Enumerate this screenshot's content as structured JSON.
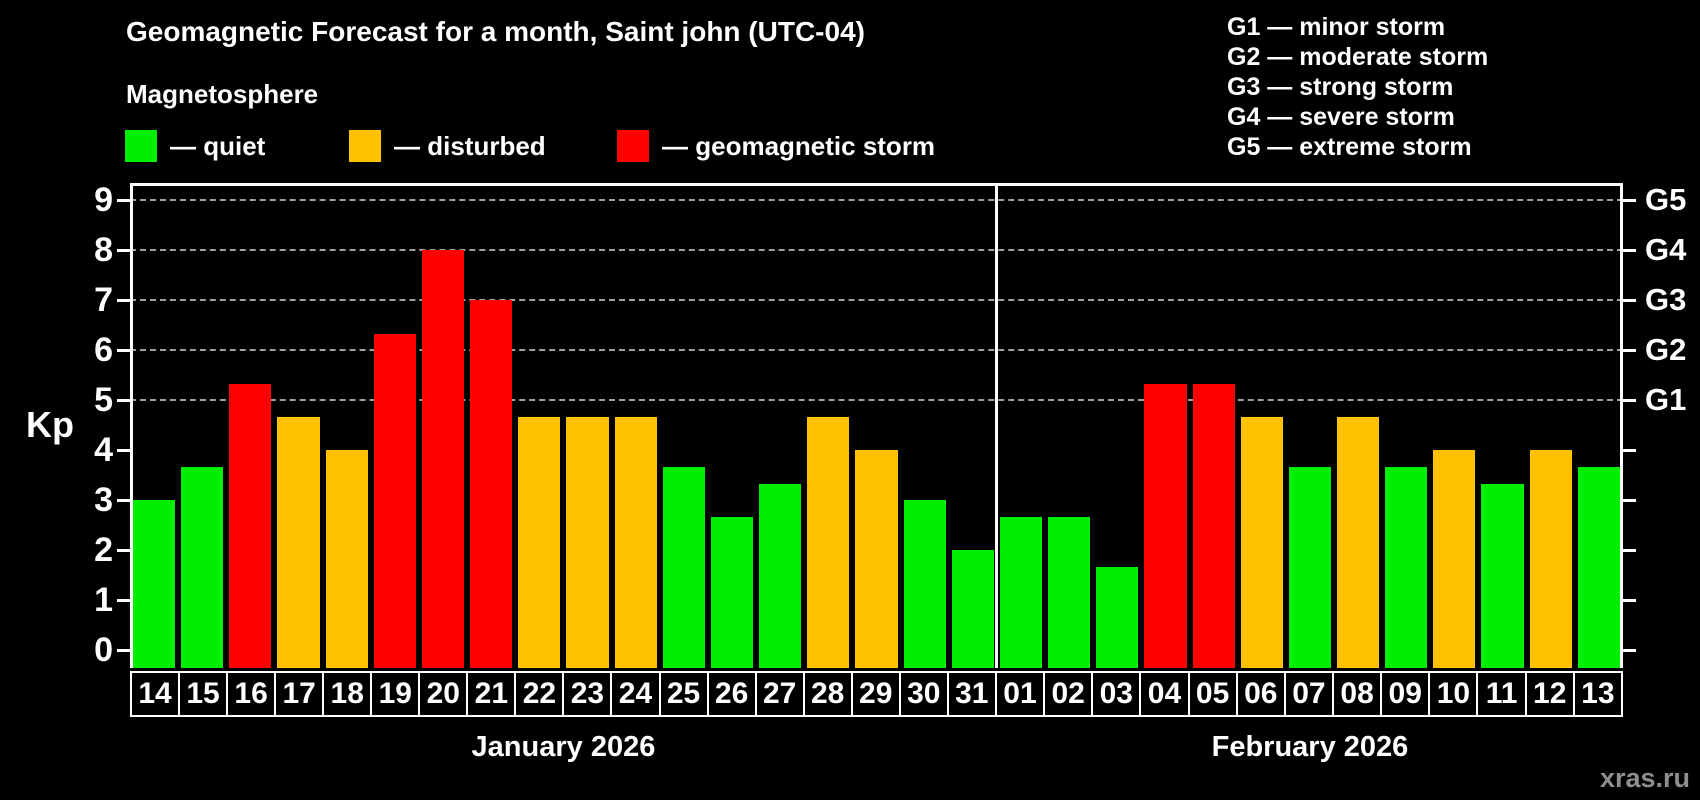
{
  "watermark": "xras.ru",
  "chart_data": {
    "type": "bar",
    "title": "Geomagnetic Forecast for a month, Saint john (UTC-04)",
    "subtitle": "Magnetosphere",
    "ylabel": "Kp",
    "ylim": [
      0,
      9
    ],
    "y_ticks": [
      0,
      1,
      2,
      3,
      4,
      5,
      6,
      7,
      8,
      9
    ],
    "gridlines_at": [
      5,
      6,
      7,
      8,
      9
    ],
    "grid_style": "dashed",
    "legend_position": "top",
    "colors": {
      "quiet": "#00ee00",
      "disturbed": "#ffc100",
      "storm": "#ff0000",
      "grid": "#a0a0a0",
      "axis": "#ffffff",
      "background": "#000000",
      "watermark": "#8e8e8e"
    },
    "legend": [
      {
        "label": "— quiet",
        "level": "quiet"
      },
      {
        "label": "— disturbed",
        "level": "disturbed"
      },
      {
        "label": "— geomagnetic storm",
        "level": "storm"
      }
    ],
    "g_legend": [
      "G1 — minor storm",
      "G2 — moderate storm",
      "G3 — strong storm",
      "G4 — severe storm",
      "G5 — extreme storm"
    ],
    "g_levels": [
      {
        "kp": 5,
        "label": "G1"
      },
      {
        "kp": 6,
        "label": "G2"
      },
      {
        "kp": 7,
        "label": "G3"
      },
      {
        "kp": 8,
        "label": "G4"
      },
      {
        "kp": 9,
        "label": "G5"
      }
    ],
    "months": [
      {
        "label": "January 2026",
        "days": [
          {
            "day": "14",
            "kp": 3.0,
            "level": "quiet"
          },
          {
            "day": "15",
            "kp": 3.67,
            "level": "quiet"
          },
          {
            "day": "16",
            "kp": 5.33,
            "level": "storm"
          },
          {
            "day": "17",
            "kp": 4.67,
            "level": "disturbed"
          },
          {
            "day": "18",
            "kp": 4.0,
            "level": "disturbed"
          },
          {
            "day": "19",
            "kp": 6.33,
            "level": "storm"
          },
          {
            "day": "20",
            "kp": 8.0,
            "level": "storm"
          },
          {
            "day": "21",
            "kp": 7.0,
            "level": "storm"
          },
          {
            "day": "22",
            "kp": 4.67,
            "level": "disturbed"
          },
          {
            "day": "23",
            "kp": 4.67,
            "level": "disturbed"
          },
          {
            "day": "24",
            "kp": 4.67,
            "level": "disturbed"
          },
          {
            "day": "25",
            "kp": 3.67,
            "level": "quiet"
          },
          {
            "day": "26",
            "kp": 2.67,
            "level": "quiet"
          },
          {
            "day": "27",
            "kp": 3.33,
            "level": "quiet"
          },
          {
            "day": "28",
            "kp": 4.67,
            "level": "disturbed"
          },
          {
            "day": "29",
            "kp": 4.0,
            "level": "disturbed"
          },
          {
            "day": "30",
            "kp": 3.0,
            "level": "quiet"
          },
          {
            "day": "31",
            "kp": 2.0,
            "level": "quiet"
          }
        ]
      },
      {
        "label": "February 2026",
        "days": [
          {
            "day": "01",
            "kp": 2.67,
            "level": "quiet"
          },
          {
            "day": "02",
            "kp": 2.67,
            "level": "quiet"
          },
          {
            "day": "03",
            "kp": 1.67,
            "level": "quiet"
          },
          {
            "day": "04",
            "kp": 5.33,
            "level": "storm"
          },
          {
            "day": "05",
            "kp": 5.33,
            "level": "storm"
          },
          {
            "day": "06",
            "kp": 4.67,
            "level": "disturbed"
          },
          {
            "day": "07",
            "kp": 3.67,
            "level": "quiet"
          },
          {
            "day": "08",
            "kp": 4.67,
            "level": "disturbed"
          },
          {
            "day": "09",
            "kp": 3.67,
            "level": "quiet"
          },
          {
            "day": "10",
            "kp": 4.0,
            "level": "disturbed"
          },
          {
            "day": "11",
            "kp": 3.33,
            "level": "quiet"
          },
          {
            "day": "12",
            "kp": 4.0,
            "level": "disturbed"
          },
          {
            "day": "13",
            "kp": 3.67,
            "level": "quiet"
          }
        ]
      }
    ]
  }
}
